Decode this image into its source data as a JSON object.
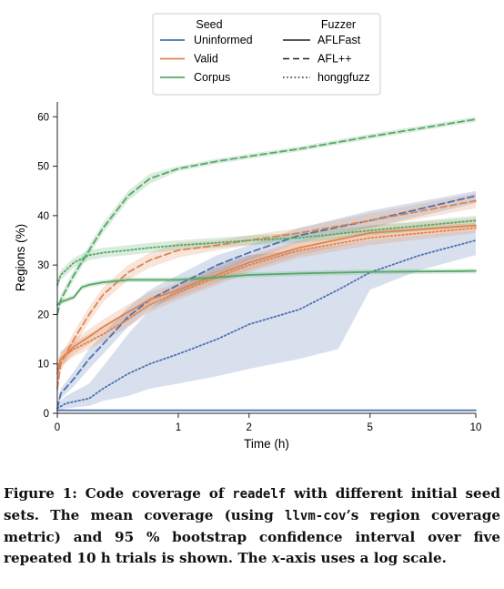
{
  "colors": {
    "uninformed": "#4c72b0",
    "valid": "#dd8452",
    "corpus": "#55a868",
    "axis": "#222222",
    "legend_border": "#cccccc"
  },
  "legend": {
    "seed_title": "Seed",
    "fuzzer_title": "Fuzzer",
    "seeds": [
      {
        "label": "Uninformed",
        "color": "#4c72b0"
      },
      {
        "label": "Valid",
        "color": "#dd8452"
      },
      {
        "label": "Corpus",
        "color": "#55a868"
      }
    ],
    "fuzzers": [
      {
        "label": "AFLFast",
        "dash": "solid"
      },
      {
        "label": "AFL++",
        "dash": "dashed"
      },
      {
        "label": "honggfuzz",
        "dash": "dotted"
      }
    ],
    "placement": "top-center, outside plot"
  },
  "chart_data": {
    "type": "line",
    "xlabel": "Time (h)",
    "ylabel": "Regions (%)",
    "x_scale": "log",
    "x_ticks": [
      {
        "value": 0,
        "label": "0"
      },
      {
        "value": 1,
        "label": "1"
      },
      {
        "value": 2,
        "label": "2"
      },
      {
        "value": 5,
        "label": "5"
      },
      {
        "value": 10,
        "label": "10"
      }
    ],
    "y_ticks": [
      0,
      10,
      20,
      30,
      40,
      50,
      60
    ],
    "xlim": [
      0,
      10
    ],
    "ylim": [
      0,
      63
    ],
    "grid": false,
    "series": [
      {
        "seed": "Uninformed",
        "fuzzer": "AFLFast",
        "x": [
          0,
          0.05,
          0.5,
          1,
          2,
          5,
          10
        ],
        "y": [
          0.6,
          0.6,
          0.6,
          0.6,
          0.6,
          0.6,
          0.6
        ],
        "lo": [
          0.5,
          0.5,
          0.5,
          0.5,
          0.5,
          0.5,
          0.5
        ],
        "hi": [
          0.8,
          0.8,
          0.8,
          0.8,
          0.8,
          0.8,
          0.8
        ]
      },
      {
        "seed": "Uninformed",
        "fuzzer": "AFL++",
        "x": [
          0,
          0.02,
          0.1,
          0.2,
          0.3,
          0.5,
          0.7,
          1,
          1.5,
          2,
          3,
          5,
          10
        ],
        "y": [
          1,
          4,
          7,
          11,
          14,
          19.5,
          23,
          26,
          30,
          32.5,
          36,
          39,
          44
        ],
        "lo": [
          0.5,
          3,
          5.5,
          9,
          12,
          17.5,
          21,
          24,
          28,
          31,
          34.5,
          37.5,
          42.5
        ],
        "hi": [
          1.5,
          5,
          8.5,
          13,
          16,
          21.5,
          25,
          28,
          32,
          34,
          37.5,
          41,
          45
        ]
      },
      {
        "seed": "Uninformed",
        "fuzzer": "honggfuzz",
        "x": [
          0,
          0.05,
          0.2,
          0.3,
          0.5,
          0.7,
          1,
          1.5,
          2,
          3,
          4,
          5,
          7,
          10
        ],
        "y": [
          1,
          2,
          3,
          5,
          8,
          10,
          12,
          15,
          18,
          21,
          25,
          28.5,
          32,
          35
        ],
        "lo": [
          0.5,
          1,
          1.5,
          2.5,
          3.5,
          5,
          6,
          7.5,
          9,
          11,
          13,
          25,
          29,
          32
        ],
        "hi": [
          2,
          3.5,
          6,
          9.5,
          16,
          21,
          25.5,
          30,
          32,
          33,
          34,
          35,
          36,
          37
        ]
      },
      {
        "seed": "Valid",
        "fuzzer": "AFLFast",
        "x": [
          0,
          0.02,
          0.1,
          0.2,
          0.3,
          0.5,
          0.7,
          1,
          1.5,
          2,
          3,
          5,
          10
        ],
        "y": [
          8,
          11,
          13.5,
          15.5,
          17.5,
          20.5,
          23,
          25,
          28,
          30.5,
          33.5,
          36.5,
          38
        ],
        "lo": [
          6,
          9.5,
          12,
          14,
          16,
          19,
          21.5,
          23.5,
          26.5,
          29,
          32,
          35,
          37
        ],
        "hi": [
          10,
          12.5,
          15,
          17,
          19,
          22,
          24.5,
          26.5,
          29.5,
          32,
          35,
          38,
          39.5
        ]
      },
      {
        "seed": "Valid",
        "fuzzer": "AFL++",
        "x": [
          0,
          0.02,
          0.1,
          0.2,
          0.3,
          0.5,
          0.7,
          1,
          1.5,
          2,
          3,
          5,
          10
        ],
        "y": [
          5,
          10,
          15,
          20,
          24,
          28.5,
          31,
          33,
          34,
          35,
          36.5,
          39,
          43
        ],
        "lo": [
          3.5,
          8.5,
          13.5,
          18.5,
          22.5,
          27,
          29.5,
          31.5,
          33,
          34,
          35.5,
          37.5,
          41.5
        ],
        "hi": [
          6.5,
          11.5,
          16.5,
          21.5,
          25.5,
          30,
          32.5,
          34.5,
          35,
          36,
          37.5,
          40.5,
          44.5
        ]
      },
      {
        "seed": "Valid",
        "fuzzer": "honggfuzz",
        "x": [
          0,
          0.02,
          0.1,
          0.2,
          0.3,
          0.5,
          0.7,
          1,
          1.5,
          2,
          3,
          5,
          10
        ],
        "y": [
          9,
          11,
          13,
          14.5,
          16,
          19,
          22,
          24.5,
          27.5,
          30,
          33,
          35.5,
          37.5
        ],
        "lo": [
          7.5,
          9.5,
          11.5,
          13,
          14.5,
          17.5,
          20.5,
          23,
          26,
          28.5,
          31.5,
          34,
          36.5
        ],
        "hi": [
          10.5,
          12.5,
          14.5,
          16,
          17.5,
          20.5,
          23.5,
          26,
          29,
          31.5,
          34.5,
          37,
          38.5
        ]
      },
      {
        "seed": "Corpus",
        "fuzzer": "AFLFast",
        "x": [
          0,
          0.02,
          0.1,
          0.15,
          0.2,
          0.3,
          0.5,
          0.7,
          1,
          1.5,
          2,
          3,
          5,
          10
        ],
        "y": [
          22,
          22.5,
          23.5,
          25.5,
          26,
          26.5,
          27,
          27,
          27,
          27.5,
          28,
          28.3,
          28.6,
          28.8
        ],
        "lo": [
          21.5,
          22,
          23,
          25,
          25.5,
          26,
          26.5,
          26.5,
          26.5,
          27,
          27.5,
          27.8,
          28.1,
          28.3
        ],
        "hi": [
          22.5,
          23,
          24,
          26,
          26.5,
          27,
          27.5,
          27.5,
          27.5,
          28,
          28.5,
          28.8,
          29.1,
          29.3
        ]
      },
      {
        "seed": "Corpus",
        "fuzzer": "AFL++",
        "x": [
          0,
          0.02,
          0.1,
          0.2,
          0.3,
          0.5,
          0.7,
          1,
          1.5,
          2,
          3,
          5,
          10
        ],
        "y": [
          20,
          23,
          28,
          33,
          37.5,
          44,
          47.5,
          49.5,
          51,
          52,
          53.5,
          56,
          59.5
        ],
        "lo": [
          19,
          22,
          27,
          32,
          36.5,
          43,
          46.5,
          49,
          50.5,
          51.5,
          53,
          55.5,
          59
        ],
        "hi": [
          21,
          24,
          29,
          34,
          38.5,
          45,
          48.5,
          50,
          51.5,
          52.5,
          54,
          56.5,
          60
        ]
      },
      {
        "seed": "Corpus",
        "fuzzer": "honggfuzz",
        "x": [
          0,
          0.02,
          0.1,
          0.2,
          0.3,
          0.5,
          0.7,
          1,
          1.5,
          2,
          3,
          5,
          10
        ],
        "y": [
          26,
          28,
          30.5,
          32,
          32.5,
          33,
          33.5,
          34,
          34.5,
          35,
          35.5,
          37,
          39
        ],
        "lo": [
          25,
          27,
          29.5,
          31,
          31.5,
          32,
          32.5,
          33,
          33.5,
          34,
          34.5,
          36,
          38
        ],
        "hi": [
          27,
          29,
          31.5,
          33,
          33.5,
          34,
          34.5,
          35,
          35.5,
          36,
          36.5,
          38,
          40
        ]
      }
    ]
  },
  "caption": {
    "lead": "Figure 1: Code coverage of ",
    "code1": "readelf",
    "part2": " with different initial seed sets. The mean coverage (using ",
    "code2": "llvm-cov",
    "part3": "’s region coverage metric) and 95 % bootstrap confidence interval over five repeated 10 h trials is shown. The ",
    "xvar": "x",
    "part4": "-axis uses a log scale."
  }
}
